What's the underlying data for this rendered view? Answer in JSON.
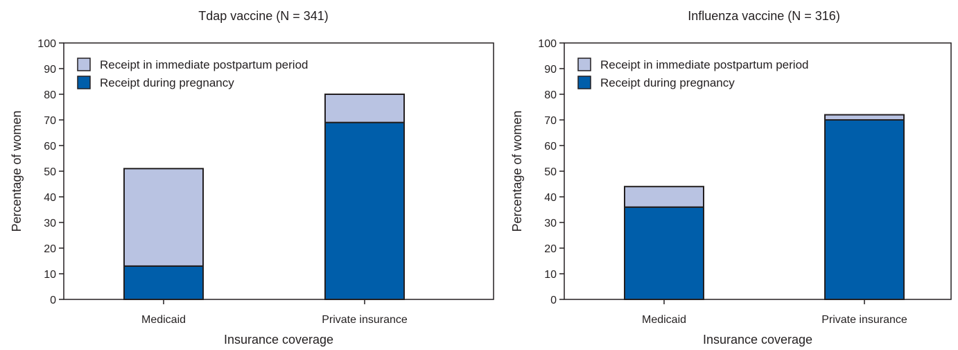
{
  "chart_data": [
    {
      "type": "bar",
      "stacked": true,
      "title": "Tdap vaccine (N = 341)",
      "xlabel": "Insurance coverage",
      "ylabel": "Percentage of women",
      "ylim": [
        0,
        100
      ],
      "yticks": [
        0,
        10,
        20,
        30,
        40,
        50,
        60,
        70,
        80,
        90,
        100
      ],
      "categories": [
        "Medicaid",
        "Private insurance"
      ],
      "legend_position": "top-left",
      "series": [
        {
          "name": "Receipt during pregnancy",
          "color": "#005eaa",
          "values": [
            13,
            69
          ]
        },
        {
          "name": "Receipt in immediate postpartum period",
          "color": "#b9c3e2",
          "values": [
            38,
            11
          ]
        }
      ],
      "legend_order": [
        1,
        0
      ]
    },
    {
      "type": "bar",
      "stacked": true,
      "title": "Influenza vaccine (N = 316)",
      "xlabel": "Insurance coverage",
      "ylabel": "Percentage of women",
      "ylim": [
        0,
        100
      ],
      "yticks": [
        0,
        10,
        20,
        30,
        40,
        50,
        60,
        70,
        80,
        90,
        100
      ],
      "categories": [
        "Medicaid",
        "Private insurance"
      ],
      "legend_position": "top-left",
      "series": [
        {
          "name": "Receipt during pregnancy",
          "color": "#005eaa",
          "values": [
            36,
            70
          ]
        },
        {
          "name": "Receipt in immediate postpartum period",
          "color": "#b9c3e2",
          "values": [
            8,
            2
          ]
        }
      ],
      "legend_order": [
        1,
        0
      ]
    }
  ]
}
